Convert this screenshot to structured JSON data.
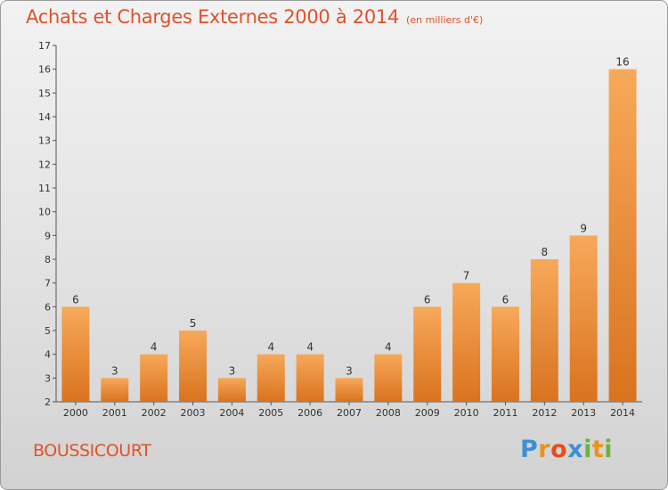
{
  "header": {
    "title": "Achats et Charges Externes 2000 à 2014",
    "subtitle": "(en milliers d'€)"
  },
  "footer": {
    "commune": "BOUSSICOURT",
    "logo": [
      "P",
      "r",
      "o",
      "x",
      "i",
      "t",
      "i"
    ]
  },
  "colors": {
    "title": "#e0522a",
    "bar_light": "#f7a95a",
    "bar_dark": "#d9731f",
    "logo": [
      "#3c8fd6",
      "#e8941e",
      "#e84e1b",
      "#3c8fd6",
      "#6cb33e",
      "#e8941e",
      "#6cb33e"
    ]
  },
  "chart_data": {
    "type": "bar",
    "categories": [
      "2000",
      "2001",
      "2002",
      "2003",
      "2004",
      "2005",
      "2006",
      "2007",
      "2008",
      "2009",
      "2010",
      "2011",
      "2012",
      "2013",
      "2014"
    ],
    "values": [
      6,
      3,
      4,
      5,
      3,
      4,
      4,
      3,
      4,
      6,
      7,
      6,
      8,
      9,
      16
    ],
    "data_labels": [
      "6",
      "3",
      "4",
      "5",
      "3",
      "4",
      "4",
      "3",
      "4",
      "6",
      "7",
      "6",
      "8",
      "9",
      "16"
    ],
    "yticks": [
      "2",
      "3",
      "4",
      "5",
      "6",
      "7",
      "8",
      "9",
      "10",
      "11",
      "12",
      "13",
      "14",
      "15",
      "16",
      "17"
    ],
    "ylim": [
      2,
      17
    ],
    "grid": false,
    "legend": "none"
  }
}
